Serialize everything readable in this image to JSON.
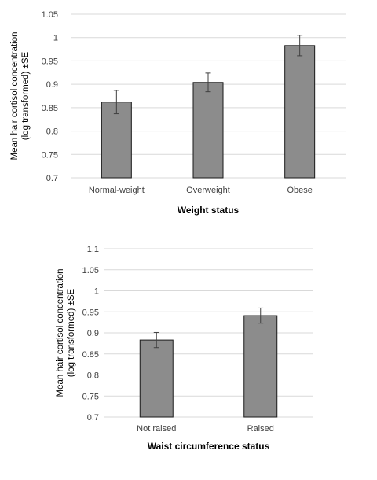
{
  "chart_data": [
    {
      "type": "bar",
      "categories": [
        "Normal-weight",
        "Overweight",
        "Obese"
      ],
      "values": [
        0.862,
        0.904,
        0.983
      ],
      "error": [
        0.025,
        0.02,
        0.022
      ],
      "xlabel": "Weight status",
      "ylabel_lines": [
        "Mean hair cortisol concentration",
        "(log transformed) ±SE"
      ],
      "ylim": [
        0.7,
        1.05
      ],
      "yticks": [
        0.7,
        0.75,
        0.8,
        0.85,
        0.9,
        0.95,
        1,
        1.05
      ],
      "ytick_labels": [
        "0.7",
        "0.75",
        "0.8",
        "0.85",
        "0.9",
        "0.95",
        "1",
        "1.05"
      ],
      "grid": true,
      "bar_color": "#8c8c8c"
    },
    {
      "type": "bar",
      "categories": [
        "Not raised",
        "Raised"
      ],
      "values": [
        0.883,
        0.941
      ],
      "error": [
        0.018,
        0.018
      ],
      "xlabel": "Waist circumference status",
      "ylabel_lines": [
        "Mean hair cortisol concentration",
        "(log transformed) ±SE"
      ],
      "ylim": [
        0.7,
        1.1
      ],
      "yticks": [
        0.7,
        0.75,
        0.8,
        0.85,
        0.9,
        0.95,
        1,
        1.05,
        1.1
      ],
      "ytick_labels": [
        "0.7",
        "0.75",
        "0.8",
        "0.85",
        "0.9",
        "0.95",
        "1",
        "1.05",
        "1.1"
      ],
      "grid": true,
      "bar_color": "#8c8c8c"
    }
  ]
}
